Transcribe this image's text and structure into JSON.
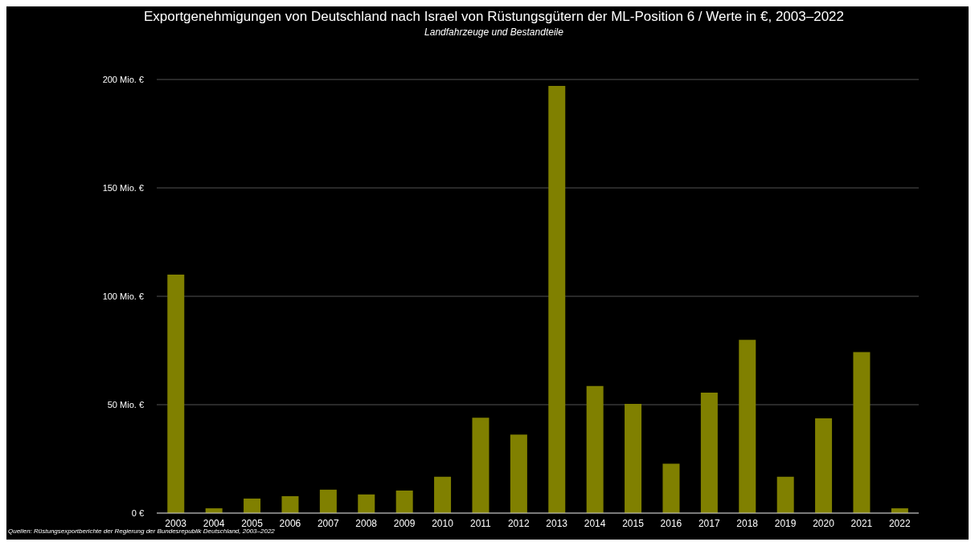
{
  "chart_data": {
    "type": "bar",
    "title": "Exportgenehmigungen von Deutschland nach Israel von Rüstungsgütern der ML-Position 6  / Werte in €, 2003–2022",
    "subtitle": "Landfahrzeuge und Bestandteile",
    "categories": [
      "2003",
      "2004",
      "2005",
      "2006",
      "2007",
      "2008",
      "2009",
      "2010",
      "2011",
      "2012",
      "2013",
      "2014",
      "2015",
      "2016",
      "2017",
      "2018",
      "2019",
      "2020",
      "2021",
      "2022"
    ],
    "values": [
      110,
      2.2,
      6.7,
      7.8,
      10.8,
      8.6,
      10.4,
      16.8,
      44,
      36.2,
      197,
      58.6,
      50.4,
      22.8,
      55.6,
      79.9,
      16.8,
      43.7,
      74.3,
      2.2
    ],
    "color": "#808000",
    "ylim": [
      0,
      200
    ],
    "yticks": [
      {
        "value": 0,
        "label": "0 €"
      },
      {
        "value": 50,
        "label": "50 Mio. €"
      },
      {
        "value": 100,
        "label": "100 Mio. €"
      },
      {
        "value": 150,
        "label": "150 Mio. €"
      },
      {
        "value": 200,
        "label": "200 Mio. €"
      }
    ],
    "grid": "y",
    "annotations": [
      "Quellen: Rüstungsexportberichte der Regierung der Bundesrepublik Deutschland, 2003–2022"
    ]
  }
}
